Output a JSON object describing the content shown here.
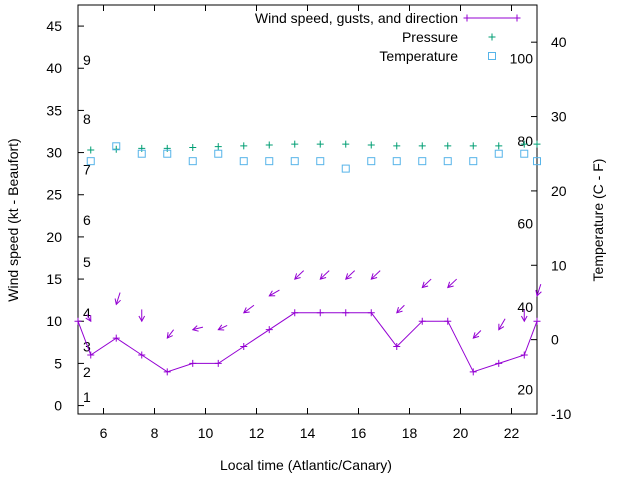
{
  "chart_data": {
    "type": "line",
    "xlabel": "Local time (Atlantic/Canary)",
    "ylabel": "Wind speed (kt - Beaufort)",
    "y2label": "Temperature (C - F)",
    "xlim": [
      5,
      23
    ],
    "ylim": [
      -1,
      47.5
    ],
    "y2lim": [
      -10,
      45
    ],
    "x_ticks": [
      6,
      8,
      10,
      12,
      14,
      16,
      18,
      20,
      22
    ],
    "y_ticks": [
      0,
      5,
      10,
      15,
      20,
      25,
      30,
      35,
      40,
      45
    ],
    "y2_ticks": [
      -10,
      0,
      10,
      20,
      30,
      40
    ],
    "beaufort_labels": [
      {
        "label": "1",
        "y": 1
      },
      {
        "label": "2",
        "y": 4
      },
      {
        "label": "3",
        "y": 7
      },
      {
        "label": "4",
        "y": 11
      },
      {
        "label": "5",
        "y": 17
      },
      {
        "label": "6",
        "y": 22
      },
      {
        "label": "7",
        "y": 28
      },
      {
        "label": "8",
        "y": 34
      },
      {
        "label": "9",
        "y": 41
      }
    ],
    "fahrenheit_labels": [
      {
        "label": "20",
        "y2": -6.7
      },
      {
        "label": "40",
        "y2": 4.4
      },
      {
        "label": "60",
        "y2": 15.6
      },
      {
        "label": "80",
        "y2": 26.7
      },
      {
        "label": "100",
        "y2": 37.8
      }
    ],
    "legend": {
      "position": "top-right",
      "entries": [
        "Wind speed, gusts, and direction",
        "Pressure",
        "Temperature"
      ]
    },
    "series": [
      {
        "name": "Wind speed, gusts, and direction",
        "color": "#9400d3",
        "x": [
          5,
          5.5,
          6.5,
          7.5,
          8.5,
          9.5,
          10.5,
          11.5,
          12.5,
          13.5,
          14.5,
          15.5,
          16.5,
          17.5,
          18.5,
          19.5,
          20.5,
          21.5,
          22.5,
          23
        ],
        "y": [
          10,
          6,
          8,
          6,
          4,
          5,
          5,
          7,
          9,
          11,
          11,
          11,
          11,
          7,
          10,
          10,
          4,
          5,
          6,
          10
        ]
      },
      {
        "name": "Pressure",
        "color": "#009e73",
        "x": [
          5.5,
          6.5,
          7.5,
          8.5,
          9.5,
          10.5,
          11.5,
          12.5,
          13.5,
          14.5,
          15.5,
          16.5,
          17.5,
          18.5,
          19.5,
          20.5,
          21.5,
          22.5,
          23
        ],
        "y": [
          30.3,
          30.4,
          30.5,
          30.5,
          30.6,
          30.7,
          30.8,
          30.9,
          31,
          31,
          31,
          30.9,
          30.8,
          30.8,
          30.8,
          30.8,
          30.8,
          31,
          31
        ]
      },
      {
        "name": "Temperature",
        "color": "#56b4e9",
        "x": [
          5.5,
          6.5,
          7.5,
          8.5,
          9.5,
          10.5,
          11.5,
          12.5,
          13.5,
          14.5,
          15.5,
          16.5,
          17.5,
          18.5,
          19.5,
          20.5,
          21.5,
          22.5,
          23
        ],
        "y2": [
          24,
          26,
          25,
          25,
          24,
          25,
          24,
          24,
          24,
          24,
          23,
          24,
          24,
          24,
          24,
          24,
          25,
          25,
          24
        ]
      }
    ],
    "direction_arrows": {
      "color": "#9400d3",
      "x": [
        5.5,
        6.5,
        7.5,
        8.5,
        9.5,
        10.5,
        11.5,
        12.5,
        13.5,
        14.5,
        15.5,
        16.5,
        17.5,
        18.5,
        19.5,
        20.5,
        21.5,
        22.5,
        23
      ],
      "y": [
        10,
        12,
        10,
        8,
        9,
        9,
        11,
        13,
        15,
        15,
        15,
        15,
        11,
        14,
        14,
        8,
        9,
        10,
        13
      ],
      "dx": [
        0.15,
        -0.15,
        0,
        -0.25,
        -0.4,
        -0.35,
        -0.4,
        -0.4,
        -0.35,
        -0.35,
        -0.35,
        -0.35,
        -0.3,
        -0.35,
        -0.35,
        -0.3,
        -0.25,
        0,
        -0.15
      ],
      "dy": [
        0.8,
        1.4,
        1.4,
        1,
        0.3,
        0.5,
        0.9,
        0.7,
        1,
        1,
        1,
        1,
        0.9,
        1,
        1,
        0.9,
        1.3,
        1.4,
        1.4
      ]
    }
  }
}
